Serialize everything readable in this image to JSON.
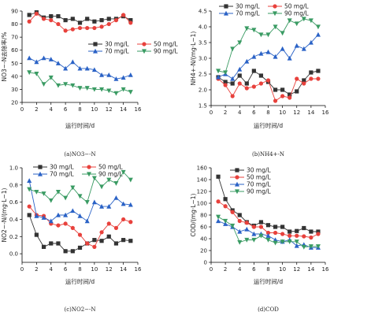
{
  "chart_data": [
    {
      "type": "line",
      "caption": "(a)NO3−-N",
      "xlabel": "运行时间/d",
      "ylabel": "NO3−-N去除率/%",
      "xlim": [
        0,
        16
      ],
      "xticks": [
        0,
        2,
        4,
        6,
        8,
        10,
        12,
        14,
        16
      ],
      "ylim": [
        20,
        90
      ],
      "yticks": [
        20,
        30,
        40,
        50,
        60,
        70,
        80,
        90
      ],
      "legend_location": "middle-right",
      "x": [
        1,
        2,
        3,
        4,
        5,
        6,
        7,
        8,
        9,
        10,
        11,
        12,
        13,
        14,
        15
      ],
      "series": [
        {
          "name": "30 mg/L",
          "values": [
            87,
            89,
            85,
            86,
            86,
            83,
            84,
            81,
            84,
            82,
            83,
            84,
            84,
            86,
            83
          ]
        },
        {
          "name": "50 mg/L",
          "values": [
            82,
            88,
            84,
            83,
            80,
            75,
            76,
            77,
            77,
            77,
            78,
            80,
            83,
            87,
            81
          ]
        },
        {
          "name": "70 mg/L",
          "values": [
            54,
            51,
            54,
            53,
            50,
            46,
            51,
            46,
            46,
            45,
            41,
            41,
            38,
            39,
            41
          ]
        },
        {
          "name": "90 mg/L",
          "values": [
            43,
            42,
            34,
            39,
            33,
            34,
            33,
            31,
            31,
            30,
            30,
            29,
            27,
            30,
            28
          ]
        }
      ]
    },
    {
      "type": "line",
      "caption": "(b)NH4+-N",
      "xlabel": "运行时间/d",
      "ylabel": "NH4+-N/(mg·L−1)",
      "xlim": [
        0,
        16
      ],
      "xticks": [
        0,
        2,
        4,
        6,
        8,
        10,
        12,
        14,
        16
      ],
      "ylim": [
        1.5,
        4.5
      ],
      "yticks": [
        1.5,
        2.0,
        2.5,
        3.0,
        3.5,
        4.0,
        4.5
      ],
      "legend_location": "top-left",
      "x": [
        1,
        2,
        3,
        4,
        5,
        6,
        7,
        8,
        9,
        10,
        11,
        12,
        13,
        14,
        15
      ],
      "series": [
        {
          "name": "30 mg/L",
          "values": [
            2.4,
            2.25,
            2.2,
            2.45,
            2.2,
            2.6,
            2.45,
            2.25,
            2.0,
            2.0,
            1.85,
            1.95,
            2.3,
            2.55,
            2.6
          ]
        },
        {
          "name": "50 mg/L",
          "values": [
            2.35,
            2.15,
            1.8,
            2.2,
            2.05,
            2.1,
            2.2,
            2.3,
            1.65,
            1.8,
            1.75,
            2.35,
            2.2,
            2.35,
            2.35
          ]
        },
        {
          "name": "70 mg/L",
          "values": [
            2.4,
            2.5,
            2.35,
            2.65,
            2.9,
            3.05,
            3.15,
            3.2,
            3.05,
            3.3,
            3.0,
            3.4,
            3.3,
            3.5,
            3.75
          ]
        },
        {
          "name": "90 mg/L",
          "values": [
            2.6,
            2.55,
            3.3,
            3.5,
            3.95,
            3.9,
            3.75,
            3.75,
            4.0,
            3.8,
            4.2,
            4.1,
            4.25,
            4.2,
            4.0
          ]
        }
      ]
    },
    {
      "type": "line",
      "caption": "(c)NO2−-N",
      "xlabel": "运行时间/d",
      "ylabel": "NO2−-N/(mg·L−1)",
      "xlim": [
        0,
        16
      ],
      "xticks": [
        0,
        2,
        4,
        6,
        8,
        10,
        12,
        14,
        16
      ],
      "ylim": [
        -0.1,
        1.0
      ],
      "yticks": [
        0.0,
        0.2,
        0.4,
        0.6,
        0.8,
        1.0
      ],
      "legend_location": "top",
      "x": [
        1,
        2,
        3,
        4,
        5,
        6,
        7,
        8,
        9,
        10,
        11,
        12,
        13,
        14,
        15
      ],
      "series": [
        {
          "name": "30 mg/L",
          "values": [
            0.45,
            0.22,
            0.08,
            0.12,
            0.12,
            0.03,
            0.03,
            0.07,
            0.12,
            0.16,
            0.15,
            0.2,
            0.12,
            0.16,
            0.15
          ]
        },
        {
          "name": "50 mg/L",
          "values": [
            0.55,
            0.45,
            0.44,
            0.35,
            0.33,
            0.35,
            0.3,
            0.22,
            0.12,
            0.08,
            0.25,
            0.35,
            0.3,
            0.4,
            0.37
          ]
        },
        {
          "name": "70 mg/L",
          "values": [
            0.85,
            0.44,
            0.42,
            0.38,
            0.45,
            0.45,
            0.5,
            0.44,
            0.38,
            0.6,
            0.55,
            0.55,
            0.65,
            0.58,
            0.57
          ]
        },
        {
          "name": "90 mg/L",
          "values": [
            0.75,
            0.72,
            0.7,
            0.62,
            0.72,
            0.65,
            0.77,
            0.67,
            0.6,
            0.88,
            0.78,
            0.86,
            0.82,
            0.95,
            0.86
          ]
        }
      ]
    },
    {
      "type": "line",
      "caption": "(d)COD",
      "xlabel": "运行时间/d",
      "ylabel": "COD/(mg·L−1)",
      "xlim": [
        0,
        16
      ],
      "xticks": [
        0,
        2,
        4,
        6,
        8,
        10,
        12,
        14,
        16
      ],
      "ylim": [
        0,
        160
      ],
      "yticks": [
        0,
        20,
        40,
        60,
        80,
        100,
        120,
        140,
        160
      ],
      "legend_location": "top-left",
      "x": [
        1,
        2,
        3,
        4,
        5,
        6,
        7,
        8,
        9,
        10,
        11,
        12,
        13,
        14,
        15
      ],
      "series": [
        {
          "name": "30 mg/L",
          "values": [
            145,
            107,
            88,
            80,
            68,
            62,
            68,
            63,
            60,
            60,
            52,
            53,
            58,
            52,
            52
          ]
        },
        {
          "name": "50 mg/L",
          "values": [
            103,
            95,
            85,
            70,
            67,
            60,
            60,
            50,
            50,
            48,
            45,
            45,
            44,
            42,
            48
          ]
        },
        {
          "name": "70 mg/L",
          "values": [
            70,
            65,
            60,
            52,
            56,
            48,
            48,
            45,
            38,
            35,
            38,
            28,
            30,
            25,
            25
          ]
        },
        {
          "name": "90 mg/L",
          "values": [
            77,
            70,
            62,
            34,
            38,
            38,
            45,
            38,
            33,
            35,
            35,
            35,
            26,
            27,
            27
          ]
        }
      ]
    }
  ],
  "style": {
    "series_colors": [
      "#333333",
      "#e8413c",
      "#2a62c6",
      "#3a9b63"
    ],
    "series_markers": [
      "square",
      "circle",
      "triangle-up",
      "triangle-down"
    ]
  }
}
